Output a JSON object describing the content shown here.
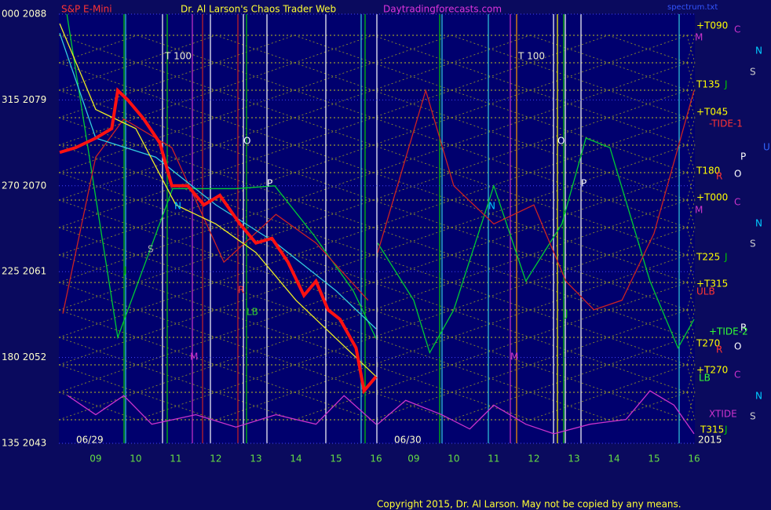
{
  "header": {
    "left": "S&P E-Mini",
    "center": "Dr. Al Larson's Chaos Trader Web",
    "site": "Daytradingforecasts.com",
    "file": "spectrum.txt"
  },
  "footer": "Copyright 2015, Dr. Al Larson. May not be copied by any means.",
  "chart_data": [
    {
      "type": "line",
      "date_label": "06/29",
      "xlim": [
        8.08,
        16.02
      ],
      "ylim": [
        2043,
        2088
      ],
      "xticks": [
        {
          "value": 9,
          "label": "09"
        },
        10,
        11,
        12,
        13,
        14,
        15,
        16
      ],
      "yticks": [
        {
          "value": 2088,
          "label": "000 2088"
        },
        {
          "value": 2079,
          "label": "315 2079"
        },
        {
          "value": 2070,
          "label": "270 2070"
        },
        {
          "value": 2061,
          "label": "225 2061"
        },
        {
          "value": 2052,
          "label": "180 2052"
        },
        {
          "value": 2043,
          "label": "135 2043"
        }
      ],
      "series": [
        {
          "color": "#00cc33",
          "x": [
            8.28,
            9.55,
            10.92,
            12.5,
            13.47,
            14.45,
            15.43,
            16.0
          ],
          "values": [
            2088,
            2054.1,
            2069.7,
            2069.7,
            2070,
            2064.8,
            2059,
            2054
          ]
        },
        {
          "color": "#cc2222",
          "x": [
            8.18,
            9.0,
            9.7,
            10.9,
            12.2,
            13.5,
            14.5,
            15.8
          ],
          "values": [
            2056.6,
            2073,
            2077,
            2074,
            2062,
            2067,
            2064,
            2058
          ]
        },
        {
          "color": "#cc33cc",
          "x": [
            8.3,
            9.0,
            9.7,
            10.4,
            11.5,
            12.5,
            13.5,
            14.5,
            15.2,
            16.0
          ],
          "values": [
            2048,
            2046,
            2048,
            2045,
            2046,
            2044.7,
            2046,
            2045,
            2048,
            2045
          ]
        },
        {
          "color": "#33ccdd",
          "x": [
            8.1,
            9.0,
            10.5,
            12.0,
            13.5,
            15.0,
            16.0
          ],
          "values": [
            2086,
            2075,
            2073,
            2068,
            2064,
            2059,
            2055
          ]
        },
        {
          "color": "#eeee22",
          "x": [
            8.1,
            9.0,
            10.0,
            11.0,
            12.0,
            13.0,
            14.0,
            15.0,
            16.0
          ],
          "values": [
            2087,
            2078,
            2076,
            2068,
            2066,
            2063,
            2058,
            2054,
            2050
          ]
        },
        {
          "color": "#ff1111",
          "x": [
            8.1,
            8.5,
            9.0,
            9.4,
            9.55,
            9.8,
            10.2,
            10.6,
            10.9,
            11.3,
            11.7,
            12.1,
            12.6,
            13.0,
            13.4,
            13.8,
            14.2,
            14.5,
            14.8,
            15.1,
            15.5,
            15.7,
            16.0
          ],
          "values": [
            2073.5,
            2074,
            2075,
            2076,
            2080,
            2079,
            2077,
            2074.5,
            2070,
            2070,
            2068,
            2069,
            2066,
            2064,
            2064.5,
            2062,
            2058.5,
            2060,
            2057,
            2056,
            2053,
            2048.5,
            2050
          ]
        }
      ]
    },
    {
      "type": "line",
      "date_label": "06/30",
      "year_label": "2015",
      "xlim": [
        8.08,
        16.02
      ],
      "ylim": [
        2043,
        2088
      ],
      "xticks": [
        {
          "value": 9,
          "label": "09"
        },
        10,
        11,
        12,
        13,
        14,
        15,
        16
      ],
      "series": [
        {
          "color": "#00cc33",
          "x": [
            8.1,
            9.0,
            9.4,
            10.0,
            11.0,
            11.8,
            12.7,
            13.3,
            13.9,
            14.9,
            15.6,
            16.0
          ],
          "values": [
            2064,
            2058,
            2052.5,
            2057,
            2070,
            2060,
            2066,
            2075,
            2074,
            2060,
            2053,
            2056
          ]
        },
        {
          "color": "#cc2222",
          "x": [
            8.1,
            9.3,
            10.0,
            11.0,
            12.0,
            12.8,
            13.5,
            14.2,
            15.0,
            16.0
          ],
          "values": [
            2063,
            2080,
            2070,
            2066,
            2068,
            2060,
            2057,
            2058,
            2065,
            2080
          ]
        },
        {
          "color": "#cc33cc",
          "x": [
            8.1,
            8.8,
            9.7,
            10.4,
            11.0,
            11.8,
            12.5,
            13.4,
            14.3,
            14.9,
            15.5,
            16.0
          ],
          "values": [
            2045,
            2047.5,
            2046,
            2044.5,
            2047,
            2045,
            2044,
            2045,
            2045.5,
            2048.5,
            2047,
            2044
          ]
        }
      ]
    }
  ],
  "annotations": [
    {
      "text": "+T090",
      "color": "#ffff00"
    },
    {
      "text": "C",
      "color": "#cc33cc"
    },
    {
      "text": "M",
      "color": "#cc33cc"
    },
    {
      "text": "N",
      "color": "#00ccff"
    },
    {
      "text": "S",
      "color": "#cccccc"
    },
    {
      "text": "T135",
      "color": "#ffff00"
    },
    {
      "text": "J",
      "color": "#00cc00"
    },
    {
      "text": "+T045",
      "color": "#ffff00"
    },
    {
      "text": "-TIDE-1",
      "color": "#ff3333"
    },
    {
      "text": "U",
      "color": "#3366ff"
    },
    {
      "text": "P",
      "color": "#ffffff"
    },
    {
      "text": "O",
      "color": "#ffffff"
    },
    {
      "text": "T180",
      "color": "#ffff00"
    },
    {
      "text": "R",
      "color": "#ff3333"
    },
    {
      "text": "+T000",
      "color": "#ffff00"
    },
    {
      "text": "C",
      "color": "#cc33cc"
    },
    {
      "text": "M",
      "color": "#cc33cc"
    },
    {
      "text": "N",
      "color": "#00ccff"
    },
    {
      "text": "S",
      "color": "#cccccc"
    },
    {
      "text": "T225",
      "color": "#ffff00"
    },
    {
      "text": "J",
      "color": "#00cc00"
    },
    {
      "text": "+T315",
      "color": "#ffff00"
    },
    {
      "text": "ULB",
      "color": "#ff3333"
    },
    {
      "text": "R",
      "color": "#ffffff"
    },
    {
      "text": "+TIDE-2",
      "color": "#33ff33"
    },
    {
      "text": "T270",
      "color": "#ffff00"
    },
    {
      "text": "O",
      "color": "#ffffff"
    },
    {
      "text": "R",
      "color": "#ff3333"
    },
    {
      "text": "+T270",
      "color": "#ffff00"
    },
    {
      "text": "C",
      "color": "#cc33cc"
    },
    {
      "text": "LB",
      "color": "#33ff33"
    },
    {
      "text": "N",
      "color": "#00ccff"
    },
    {
      "text": "XTIDE",
      "color": "#cc33cc"
    },
    {
      "text": "S",
      "color": "#cccccc"
    },
    {
      "text": "T315",
      "color": "#ffff00"
    },
    {
      "text": "J",
      "color": "#00cc00"
    },
    {
      "text": "T  100",
      "color": "#eeeecc"
    },
    {
      "text": "T  100",
      "color": "#eeeecc"
    },
    {
      "text": "O",
      "color": "#ffffff"
    },
    {
      "text": "O",
      "color": "#ffffff"
    },
    {
      "text": "P",
      "color": "#ffffff"
    },
    {
      "text": "P",
      "color": "#ffffff"
    },
    {
      "text": "N",
      "color": "#00ccff"
    },
    {
      "text": "N",
      "color": "#00ccff"
    },
    {
      "text": "S",
      "color": "#aaaaaa"
    },
    {
      "text": "J",
      "color": "#00cc00"
    },
    {
      "text": "R",
      "color": "#ff3333"
    },
    {
      "text": "LB",
      "color": "#33cc33"
    },
    {
      "text": "M",
      "color": "#cc33cc"
    },
    {
      "text": "M",
      "color": "#cc33cc"
    },
    {
      "text": "J",
      "color": "#00cc00"
    }
  ]
}
